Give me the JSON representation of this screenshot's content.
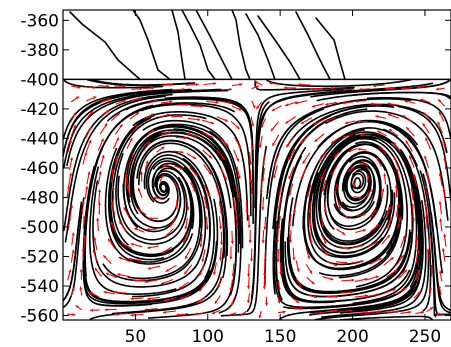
{
  "chart_data": {
    "type": "streamplot",
    "title": "",
    "xlabel": "",
    "ylabel": "",
    "xlim": [
      0,
      268
    ],
    "ylim": [
      -563,
      -353
    ],
    "x_ticks": [
      50,
      100,
      150,
      200,
      250
    ],
    "y_ticks": [
      -360,
      -380,
      -400,
      -420,
      -440,
      -460,
      -480,
      -500,
      -520,
      -540,
      -560
    ],
    "surface_level": -400,
    "grid": false,
    "series": [
      {
        "kind": "streamlines",
        "color": "#000000"
      },
      {
        "kind": "velocity-arrows",
        "color": "#ff0000"
      }
    ]
  }
}
